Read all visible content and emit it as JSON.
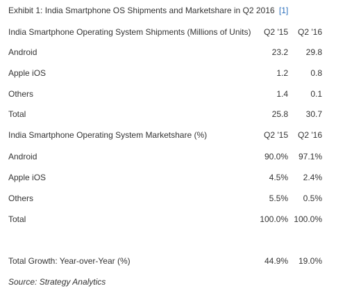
{
  "caption": {
    "text": "Exhibit 1: India Smartphone OS Shipments and Marketshare in Q2 2016",
    "ref": "[1]"
  },
  "shipments": {
    "header": {
      "label": "India Smartphone Operating System Shipments (Millions of Units)",
      "c1": "Q2 '15",
      "c2": "Q2 '16"
    },
    "rows": [
      {
        "label": "Android",
        "c1": "23.2",
        "c2": "29.8"
      },
      {
        "label": "Apple iOS",
        "c1": "1.2",
        "c2": "0.8"
      },
      {
        "label": "Others",
        "c1": "1.4",
        "c2": "0.1"
      },
      {
        "label": "Total",
        "c1": "25.8",
        "c2": "30.7"
      }
    ]
  },
  "marketshare": {
    "header": {
      "label": "India Smartphone Operating System Marketshare (%)",
      "c1": "Q2 '15",
      "c2": "Q2 '16"
    },
    "rows": [
      {
        "label": "Android",
        "c1": "90.0%",
        "c2": "97.1%"
      },
      {
        "label": "Apple iOS",
        "c1": "4.5%",
        "c2": "2.4%"
      },
      {
        "label": "Others",
        "c1": "5.5%",
        "c2": "0.5%"
      },
      {
        "label": "Total",
        "c1": "100.0%",
        "c2": "100.0%"
      }
    ]
  },
  "growth": {
    "label": "Total Growth: Year-over-Year (%)",
    "c1": "44.9%",
    "c2": "19.0%"
  },
  "source": "Source: Strategy Analytics",
  "colors": {
    "text": "#333333",
    "link": "#2a6ebb"
  }
}
